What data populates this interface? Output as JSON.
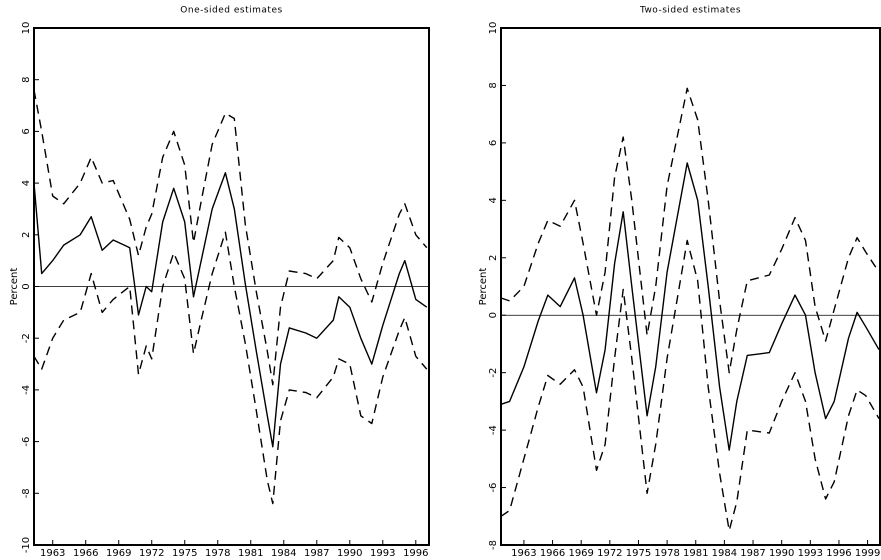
{
  "chart_data": [
    {
      "type": "line",
      "title": "One-sided estimates",
      "ylabel": "Percent",
      "x": [
        1961.3,
        1962,
        1963,
        1964,
        1965.5,
        1966.5,
        1967.5,
        1968.5,
        1970,
        1970.8,
        1971.5,
        1972,
        1973,
        1974,
        1975,
        1975.8,
        1976.5,
        1977.5,
        1978.7,
        1979.5,
        1980.5,
        1981.5,
        1982.5,
        1983,
        1983.7,
        1984.5,
        1986,
        1987,
        1988.5,
        1989,
        1990,
        1991,
        1992,
        1993,
        1994.5,
        1995,
        1996,
        1997
      ],
      "series": [
        {
          "color": "#000000",
          "style": "solid",
          "values": [
            4,
            0.5,
            1,
            1.6,
            2,
            2.7,
            1.4,
            1.8,
            1.5,
            -1.1,
            0,
            -0.2,
            2.5,
            3.8,
            2.5,
            -0.4,
            1,
            3,
            4.4,
            3,
            0.1,
            -2.5,
            -5,
            -6.2,
            -3,
            -1.6,
            -1.8,
            -2,
            -1.3,
            -0.4,
            -0.8,
            -2,
            -3,
            -1.5,
            0.5,
            1,
            -0.5,
            -0.8
          ]
        },
        {
          "color": "#000000",
          "style": "dashed",
          "values": [
            7.6,
            6,
            3.5,
            3.2,
            4,
            5,
            4,
            4.1,
            2.6,
            1.2,
            2.3,
            2.8,
            5,
            6,
            4.7,
            1.7,
            3.3,
            5.5,
            6.7,
            6.5,
            2.4,
            -0.2,
            -2.5,
            -3.8,
            -0.8,
            0.6,
            0.5,
            0.3,
            1,
            1.9,
            1.5,
            0.3,
            -0.6,
            0.9,
            2.8,
            3.2,
            2,
            1.5
          ]
        },
        {
          "color": "#000000",
          "style": "dashed",
          "values": [
            -2.7,
            -3.2,
            -2,
            -1.3,
            -1,
            0.5,
            -1,
            -0.5,
            0,
            -3.4,
            -2.3,
            -2.8,
            0,
            1.3,
            0.3,
            -2.6,
            -1.3,
            0.5,
            2.1,
            0,
            -2.2,
            -4.8,
            -7.5,
            -8.4,
            -5.2,
            -4,
            -4.1,
            -4.3,
            -3.5,
            -2.8,
            -3,
            -5,
            -5.3,
            -3.5,
            -1.7,
            -1.2,
            -2.7,
            -3.2
          ]
        }
      ],
      "xlim": [
        1961.3,
        1997.2
      ],
      "xticks": [
        1963,
        1966,
        1969,
        1972,
        1975,
        1978,
        1981,
        1984,
        1987,
        1990,
        1993,
        1996
      ],
      "ylim": [
        -10,
        10
      ],
      "yticks": [
        -10,
        -8,
        -6,
        -4,
        -2,
        0,
        2,
        4,
        6,
        8,
        10
      ],
      "reference_line": 0,
      "grid": false
    },
    {
      "type": "line",
      "title": "Two-sided estimates",
      "ylabel": "Percent",
      "x": [
        1960.6,
        1961.5,
        1963,
        1964.5,
        1965.5,
        1966.8,
        1968.3,
        1969.2,
        1970.6,
        1971.5,
        1972.5,
        1973.4,
        1974.3,
        1975.9,
        1976.8,
        1978,
        1980.1,
        1981.2,
        1982.3,
        1983.5,
        1984.5,
        1985.3,
        1986.4,
        1988.7,
        1990,
        1991.4,
        1992.5,
        1993.5,
        1994.6,
        1995.5,
        1997,
        1997.9,
        1998.8,
        2000.2
      ],
      "series": [
        {
          "color": "#000000",
          "style": "solid",
          "values": [
            -3.1,
            -3,
            -1.8,
            -0.2,
            0.7,
            0.3,
            1.3,
            0,
            -2.7,
            -1.2,
            1.8,
            3.6,
            1,
            -3.5,
            -1.8,
            1.5,
            5.3,
            4,
            1,
            -2.5,
            -4.7,
            -3,
            -1.4,
            -1.3,
            -0.3,
            0.7,
            0,
            -2,
            -3.6,
            -3,
            -0.8,
            0.1,
            -0.4,
            -1.2
          ]
        },
        {
          "color": "#000000",
          "style": "dashed",
          "values": [
            0.6,
            0.5,
            1,
            2.5,
            3.3,
            3.1,
            4,
            2.5,
            0,
            1.5,
            4.8,
            6.2,
            4,
            -0.7,
            1,
            4.5,
            7.9,
            6.8,
            4,
            0.5,
            -2,
            -0.5,
            1.2,
            1.4,
            2.3,
            3.4,
            2.6,
            0.3,
            -0.9,
            0.2,
            2,
            2.7,
            2.2,
            1.5
          ]
        },
        {
          "color": "#000000",
          "style": "dashed",
          "values": [
            -7,
            -6.8,
            -5,
            -3.2,
            -2.1,
            -2.4,
            -1.9,
            -2.5,
            -5.4,
            -4.5,
            -1.5,
            0.9,
            -1.5,
            -6.2,
            -4.5,
            -1.5,
            2.6,
            1.2,
            -2.5,
            -5.5,
            -7.5,
            -6.5,
            -4,
            -4.1,
            -3,
            -2,
            -3,
            -5,
            -6.4,
            -5.8,
            -3.5,
            -2.6,
            -2.8,
            -3.6
          ]
        }
      ],
      "xlim": [
        1960.6,
        2000.3
      ],
      "xticks": [
        1963,
        1966,
        1969,
        1972,
        1975,
        1978,
        1981,
        1984,
        1987,
        1990,
        1993,
        1996,
        1999
      ],
      "ylim": [
        -8,
        10
      ],
      "yticks": [
        -8,
        -6,
        -4,
        -2,
        0,
        2,
        4,
        6,
        8,
        10
      ],
      "reference_line": 0,
      "grid": false
    }
  ]
}
